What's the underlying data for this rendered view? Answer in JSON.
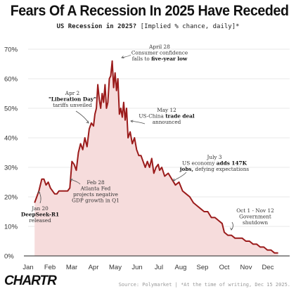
{
  "header": {
    "title": "Fears Of A Recession In 2025 Have Receded",
    "subtitle_main": "US Recession in 2025?",
    "subtitle_note": "[Implied % chance, daily]*"
  },
  "footer": {
    "brand": "CHARTR",
    "source": "Source: Polymarket | *At the time of writing, Dec 15 2025."
  },
  "colors": {
    "line": "#9b1b1b",
    "fill": "#f6dcdc",
    "grid": "#e0e0e0",
    "axis": "#222222"
  },
  "chart_data": {
    "type": "area",
    "title": "US Recession in 2025?",
    "ylabel": "",
    "xlabel": "",
    "ylim": [
      0,
      70
    ],
    "yticks": [
      0,
      10,
      20,
      30,
      40,
      50,
      60,
      70
    ],
    "ytick_labels": [
      "0%",
      "10%",
      "20%",
      "30%",
      "40%",
      "50%",
      "60%",
      "70%"
    ],
    "xlim": [
      "2025-01-01",
      "2025-12-31"
    ],
    "xticks": [
      "Jan",
      "Feb",
      "Mar",
      "Apr",
      "May",
      "Jun",
      "Jul",
      "Aug",
      "Sep",
      "Oct",
      "Nov",
      "Dec"
    ],
    "grid": true,
    "series": [
      {
        "x": [
          "2025-01-10",
          "2025-01-13",
          "2025-01-16",
          "2025-01-20",
          "2025-01-23",
          "2025-01-26",
          "2025-01-29",
          "2025-02-01",
          "2025-02-04",
          "2025-02-07",
          "2025-02-10",
          "2025-02-13",
          "2025-02-16",
          "2025-02-19",
          "2025-02-22",
          "2025-02-25",
          "2025-02-28",
          "2025-03-03",
          "2025-03-06",
          "2025-03-09",
          "2025-03-12",
          "2025-03-15",
          "2025-03-18",
          "2025-03-21",
          "2025-03-24",
          "2025-03-27",
          "2025-03-30",
          "2025-04-02",
          "2025-04-04",
          "2025-04-06",
          "2025-04-08",
          "2025-04-10",
          "2025-04-12",
          "2025-04-14",
          "2025-04-16",
          "2025-04-18",
          "2025-04-20",
          "2025-04-22",
          "2025-04-24",
          "2025-04-26",
          "2025-04-28",
          "2025-04-30",
          "2025-05-02",
          "2025-05-04",
          "2025-05-06",
          "2025-05-08",
          "2025-05-10",
          "2025-05-12",
          "2025-05-14",
          "2025-05-16",
          "2025-05-18",
          "2025-05-20",
          "2025-05-23",
          "2025-05-26",
          "2025-05-29",
          "2025-06-01",
          "2025-06-04",
          "2025-06-07",
          "2025-06-10",
          "2025-06-13",
          "2025-06-16",
          "2025-06-19",
          "2025-06-22",
          "2025-06-25",
          "2025-06-28",
          "2025-07-01",
          "2025-07-03",
          "2025-07-06",
          "2025-07-10",
          "2025-07-15",
          "2025-07-20",
          "2025-07-25",
          "2025-07-30",
          "2025-08-04",
          "2025-08-09",
          "2025-08-14",
          "2025-08-19",
          "2025-08-24",
          "2025-08-29",
          "2025-09-03",
          "2025-09-08",
          "2025-09-13",
          "2025-09-18",
          "2025-09-23",
          "2025-09-28",
          "2025-10-01",
          "2025-10-06",
          "2025-10-11",
          "2025-10-16",
          "2025-10-21",
          "2025-10-26",
          "2025-10-31",
          "2025-11-05",
          "2025-11-10",
          "2025-11-15",
          "2025-11-20",
          "2025-11-25",
          "2025-11-30",
          "2025-12-05",
          "2025-12-10",
          "2025-12-15"
        ],
        "values": [
          18,
          20,
          22,
          26,
          26,
          24,
          25,
          23,
          22,
          21,
          21,
          22,
          22,
          22,
          22,
          22,
          23,
          32,
          31,
          29,
          35,
          38,
          36,
          40,
          37,
          43,
          45,
          44,
          48,
          50,
          58,
          53,
          50,
          55,
          52,
          58,
          50,
          52,
          60,
          61,
          66,
          57,
          62,
          56,
          60,
          48,
          50,
          47,
          52,
          46,
          50,
          40,
          42,
          38,
          40,
          36,
          34,
          34,
          32,
          30,
          32,
          30,
          33,
          28,
          30,
          31,
          29,
          30,
          27,
          28,
          26,
          24,
          25,
          22,
          21,
          20,
          18,
          17,
          16,
          15,
          15,
          13,
          13,
          12,
          11,
          8,
          7,
          7,
          6,
          6,
          6,
          5,
          5,
          4,
          4,
          3,
          3,
          2,
          2,
          1,
          1
        ]
      }
    ],
    "annotations": [
      {
        "lines": [
          "Jan 20",
          "DeepSeek-R1",
          "released"
        ],
        "bold_line": 1
      },
      {
        "lines": [
          "Feb 28",
          "Atlanta Fed",
          "projects negative",
          "GDP growth in Q1"
        ],
        "bold_line": -1
      },
      {
        "lines": [
          "Apr 2",
          "\"Liberation Day\"",
          "tariffs unveiled"
        ],
        "bold_line": 1
      },
      {
        "lines": [
          "April 28",
          "Consumer confidence",
          "falls to five-year low"
        ],
        "bold_line": 2,
        "bold_text": "five-year low"
      },
      {
        "lines": [
          "May 12",
          "US-China trade deal",
          "announced"
        ],
        "bold_line": 1,
        "bold_text": "trade deal"
      },
      {
        "lines": [
          "July 3",
          "US economy adds 147K",
          "jobs, defying expectations"
        ],
        "bold_line": 1,
        "bold_text": "adds 147K",
        "bold_line2": 2,
        "bold_text2": "jobs,"
      },
      {
        "lines": [
          "Oct 1 - Nov 12",
          "Government",
          "shutdown"
        ],
        "bold_line": -1
      }
    ]
  }
}
